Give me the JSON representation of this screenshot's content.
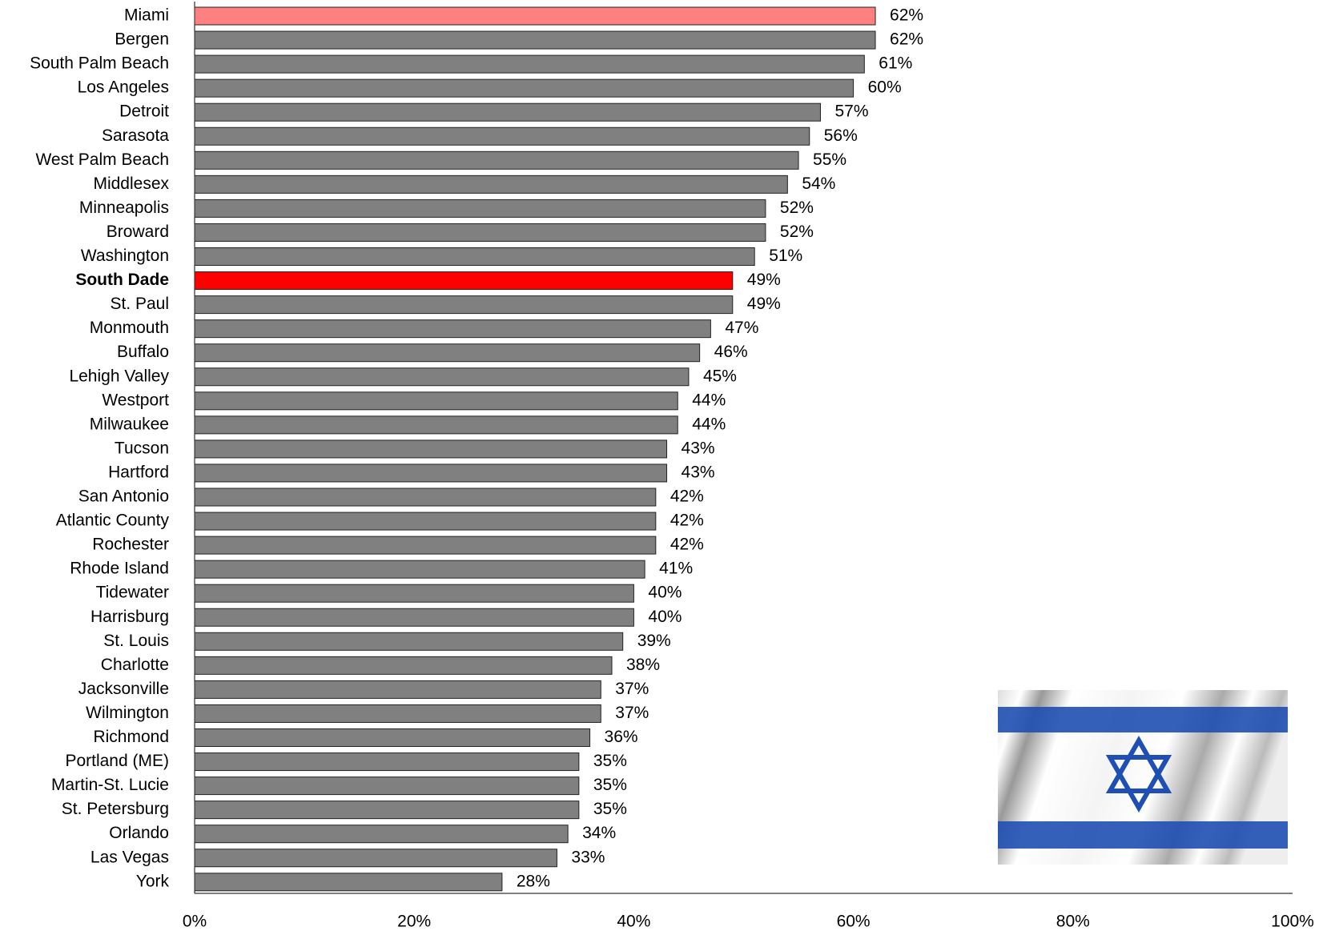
{
  "chart_data": {
    "type": "barh",
    "categories": [
      "Miami",
      "Bergen",
      "South Palm Beach",
      "Los Angeles",
      "Detroit",
      "Sarasota",
      "West Palm Beach",
      "Middlesex",
      "Minneapolis",
      "Broward",
      "Washington",
      "South Dade",
      "St. Paul",
      "Monmouth",
      "Buffalo",
      "Lehigh Valley",
      "Westport",
      "Milwaukee",
      "Tucson",
      "Hartford",
      "San Antonio",
      "Atlantic County",
      "Rochester",
      "Rhode Island",
      "Tidewater",
      "Harrisburg",
      "St. Louis",
      "Charlotte",
      "Jacksonville",
      "Wilmington",
      "Richmond",
      "Portland (ME)",
      "Martin-St. Lucie",
      "St. Petersburg",
      "Orlando",
      "Las Vegas",
      "York"
    ],
    "values": [
      62,
      62,
      61,
      60,
      57,
      56,
      55,
      54,
      52,
      52,
      51,
      49,
      49,
      47,
      46,
      45,
      44,
      44,
      43,
      43,
      42,
      42,
      42,
      41,
      40,
      40,
      39,
      38,
      37,
      37,
      36,
      35,
      35,
      35,
      34,
      33,
      28
    ],
    "value_labels": [
      "62%",
      "62%",
      "61%",
      "60%",
      "57%",
      "56%",
      "55%",
      "54%",
      "52%",
      "52%",
      "51%",
      "49%",
      "49%",
      "47%",
      "46%",
      "45%",
      "44%",
      "44%",
      "43%",
      "43%",
      "42%",
      "42%",
      "42%",
      "41%",
      "40%",
      "40%",
      "39%",
      "38%",
      "37%",
      "37%",
      "36%",
      "35%",
      "35%",
      "35%",
      "34%",
      "33%",
      "28%"
    ],
    "colors": [
      "#ff8080",
      "#808080",
      "#808080",
      "#808080",
      "#808080",
      "#808080",
      "#808080",
      "#808080",
      "#808080",
      "#808080",
      "#808080",
      "#ff0000",
      "#808080",
      "#808080",
      "#808080",
      "#808080",
      "#808080",
      "#808080",
      "#808080",
      "#808080",
      "#808080",
      "#808080",
      "#808080",
      "#808080",
      "#808080",
      "#808080",
      "#808080",
      "#808080",
      "#808080",
      "#808080",
      "#808080",
      "#808080",
      "#808080",
      "#808080",
      "#808080",
      "#808080",
      "#808080"
    ],
    "label_colors": [
      "#000000",
      "#000000",
      "#000000",
      "#000000",
      "#000000",
      "#000000",
      "#000000",
      "#000000",
      "#000000",
      "#000000",
      "#000000",
      "#ff0000",
      "#000000",
      "#000000",
      "#000000",
      "#000000",
      "#000000",
      "#000000",
      "#000000",
      "#000000",
      "#000000",
      "#000000",
      "#000000",
      "#000000",
      "#000000",
      "#000000",
      "#000000",
      "#000000",
      "#000000",
      "#000000",
      "#000000",
      "#000000",
      "#000000",
      "#000000",
      "#000000",
      "#000000",
      "#000000"
    ],
    "xlim": [
      0,
      100
    ],
    "xticks": [
      {
        "value": 0,
        "label": "0%"
      },
      {
        "value": 20,
        "label": "20%"
      },
      {
        "value": 40,
        "label": "40%"
      },
      {
        "value": 60,
        "label": "60%"
      },
      {
        "value": 80,
        "label": "80%"
      },
      {
        "value": 100,
        "label": "100%"
      }
    ],
    "grid": false
  }
}
